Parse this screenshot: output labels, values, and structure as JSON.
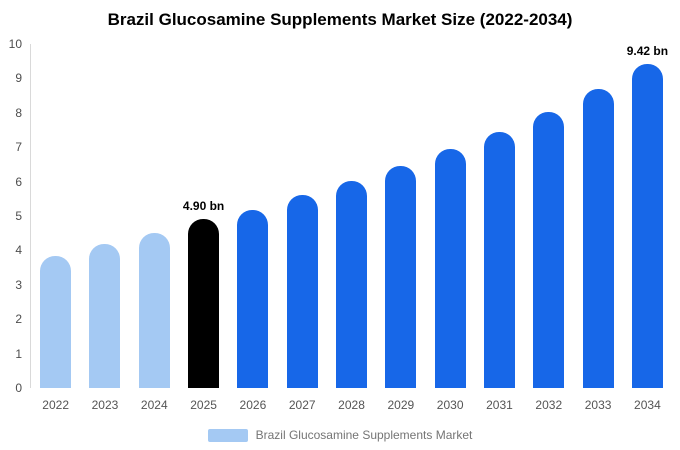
{
  "title": "Brazil Glucosamine Supplements Market Size (2022-2034)",
  "chart_data": {
    "type": "bar",
    "title": "Brazil Glucosamine Supplements Market Size (2022-2034)",
    "categories": [
      "2022",
      "2023",
      "2024",
      "2025",
      "2026",
      "2027",
      "2028",
      "2029",
      "2030",
      "2031",
      "2032",
      "2033",
      "2034"
    ],
    "values": [
      3.85,
      4.18,
      4.5,
      4.9,
      5.18,
      5.6,
      6.02,
      6.45,
      6.95,
      7.45,
      8.02,
      8.68,
      9.42
    ],
    "bar_style_keys": [
      "light",
      "light",
      "light",
      "black",
      "blue",
      "blue",
      "blue",
      "blue",
      "blue",
      "blue",
      "blue",
      "blue",
      "blue"
    ],
    "colors": {
      "light": "#a4c9f3",
      "black": "#000000",
      "blue": "#1767e8"
    },
    "annotations": [
      {
        "index": 3,
        "text": "4.90 bn"
      },
      {
        "index": 12,
        "text": "9.42 bn"
      }
    ],
    "xlabel": "",
    "ylabel": "",
    "ylim": [
      0,
      10
    ],
    "yticks": [
      0,
      1,
      2,
      3,
      4,
      5,
      6,
      7,
      8,
      9,
      10
    ],
    "grid": false,
    "legend_position": "bottom",
    "legend": [
      {
        "label": "Brazil Glucosamine Supplements Market",
        "color": "#a4c9f3"
      }
    ]
  }
}
